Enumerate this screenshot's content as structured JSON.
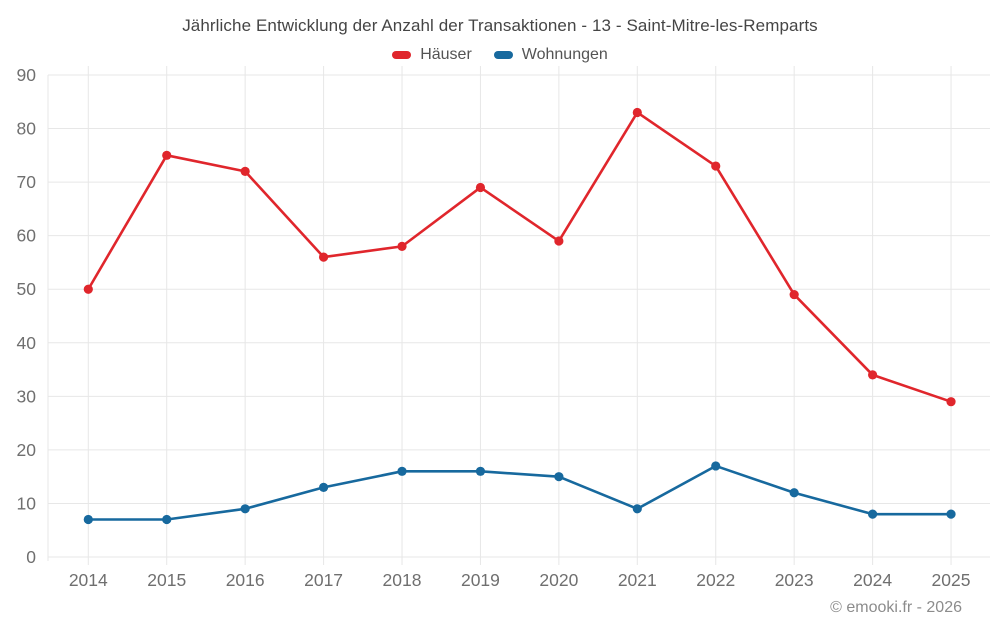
{
  "header": {
    "title": "Jährliche Entwicklung der Anzahl der Transaktionen - 13 - Saint-Mitre-les-Remparts"
  },
  "footer": {
    "copyright": "© emooki.fr - 2026"
  },
  "colors": {
    "haeuser": "#e0262c",
    "wohnungen": "#17699e",
    "grid": "#e7e7e7",
    "axis_label": "#6f6f6f",
    "title_text": "#454545",
    "legend_text": "#545454",
    "copyright_text": "#8c8c8c"
  },
  "chart_data": {
    "type": "line",
    "title": "Jährliche Entwicklung der Anzahl der Transaktionen - 13 - Saint-Mitre-les-Remparts",
    "categories": [
      "2014",
      "2015",
      "2016",
      "2017",
      "2018",
      "2019",
      "2020",
      "2021",
      "2022",
      "2023",
      "2024",
      "2025"
    ],
    "series": [
      {
        "name": "Häuser",
        "color": "#e0262c",
        "values": [
          50,
          75,
          72,
          56,
          58,
          69,
          59,
          83,
          73,
          49,
          34,
          29
        ]
      },
      {
        "name": "Wohnungen",
        "color": "#17699e",
        "values": [
          7,
          7,
          9,
          13,
          16,
          16,
          15,
          9,
          17,
          12,
          8,
          8
        ]
      }
    ],
    "xlabel": "",
    "ylabel": "",
    "ylim": [
      0,
      90
    ],
    "ytick_step": 10,
    "yticks": [
      0,
      10,
      20,
      30,
      40,
      50,
      60,
      70,
      80,
      90
    ],
    "grid": true,
    "legend_position": "top",
    "marker": "circle"
  }
}
